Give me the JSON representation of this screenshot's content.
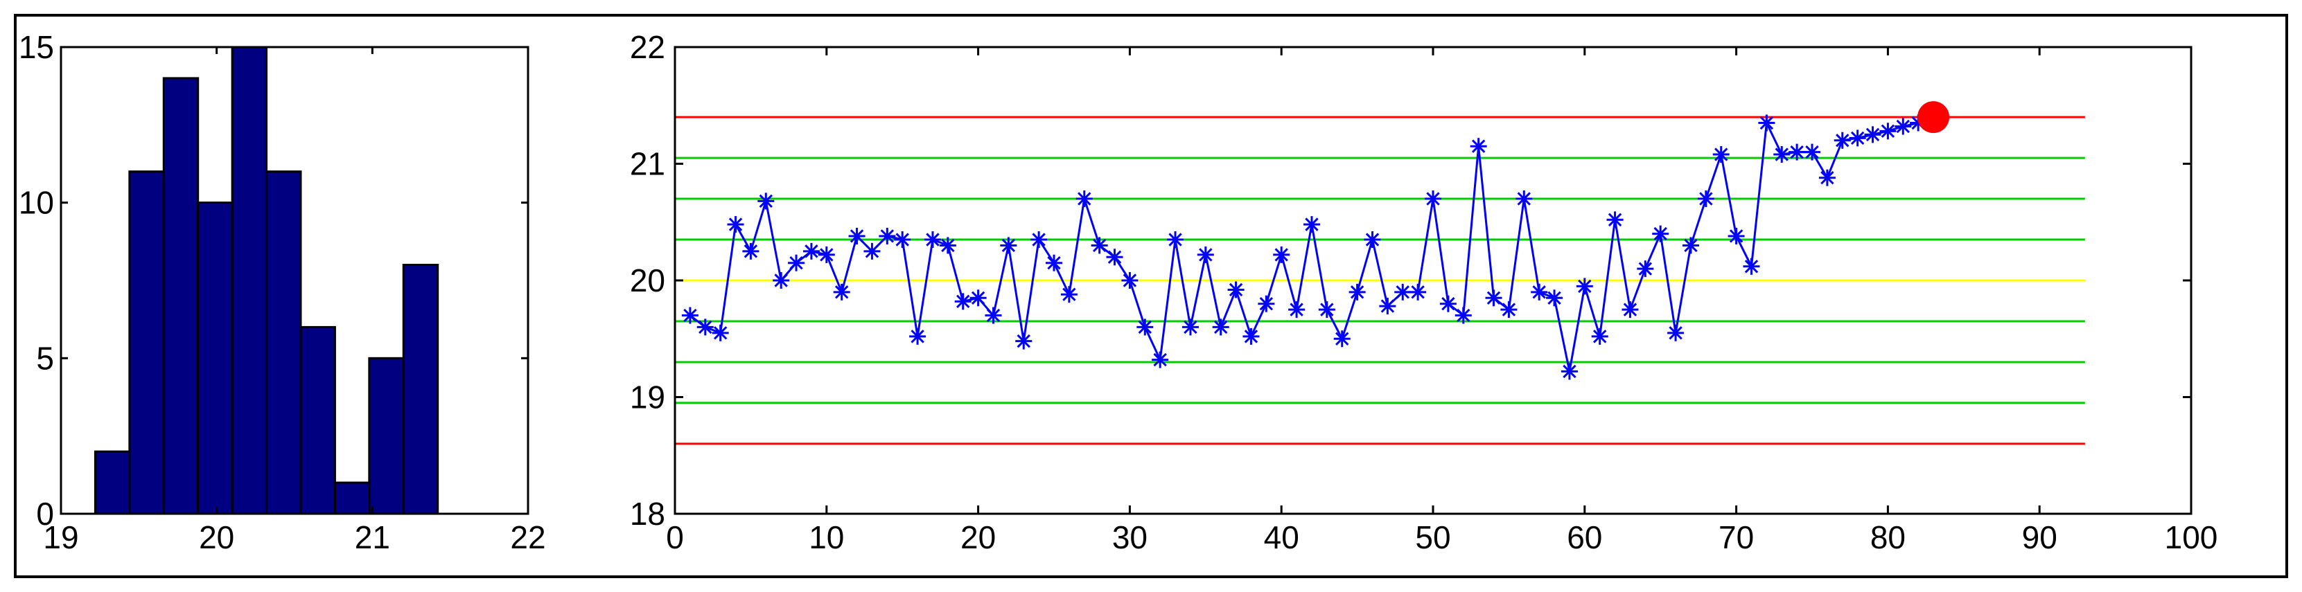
{
  "chart_data": [
    {
      "type": "bar",
      "subtype": "histogram",
      "bar_color": "#000080",
      "bin_width": 0.22,
      "bin_centers": [
        19.33,
        19.55,
        19.77,
        19.99,
        20.21,
        20.43,
        20.65,
        20.87,
        21.09,
        21.31
      ],
      "values": [
        2,
        11,
        14,
        10,
        15,
        11,
        6,
        1,
        5,
        8
      ],
      "xlim": [
        19,
        22
      ],
      "ylim": [
        0,
        15
      ],
      "xticks": [
        19,
        20,
        21,
        22
      ],
      "yticks": [
        0,
        5,
        10,
        15
      ],
      "grid": false
    },
    {
      "type": "line",
      "subtype": "control-chart",
      "xlim": [
        0,
        100
      ],
      "ylim": [
        18,
        22
      ],
      "xticks": [
        0,
        10,
        20,
        30,
        40,
        50,
        60,
        70,
        80,
        90,
        100
      ],
      "yticks": [
        18,
        19,
        20,
        21,
        22
      ],
      "grid": false,
      "series": [
        {
          "color": "#0000ff",
          "marker": "asterisk",
          "x": [
            1,
            2,
            3,
            4,
            5,
            6,
            7,
            8,
            9,
            10,
            11,
            12,
            13,
            14,
            15,
            16,
            17,
            18,
            19,
            20,
            21,
            22,
            23,
            24,
            25,
            26,
            27,
            28,
            29,
            30,
            31,
            32,
            33,
            34,
            35,
            36,
            37,
            38,
            39,
            40,
            41,
            42,
            43,
            44,
            45,
            46,
            47,
            48,
            49,
            50,
            51,
            52,
            53,
            54,
            55,
            56,
            57,
            58,
            59,
            60,
            61,
            62,
            63,
            64,
            65,
            66,
            67,
            68,
            69,
            70,
            71,
            72,
            73,
            74,
            75,
            76,
            77,
            78,
            79,
            80,
            81,
            82,
            83
          ],
          "y": [
            19.7,
            19.6,
            19.55,
            20.48,
            20.25,
            20.68,
            20.0,
            20.15,
            20.25,
            20.22,
            19.9,
            20.38,
            20.25,
            20.38,
            20.35,
            19.52,
            20.35,
            20.3,
            19.82,
            19.85,
            19.7,
            20.3,
            19.48,
            20.35,
            20.15,
            19.88,
            20.7,
            20.3,
            20.2,
            20.0,
            19.6,
            19.32,
            20.35,
            19.6,
            20.22,
            19.6,
            19.92,
            19.52,
            19.8,
            20.22,
            19.75,
            20.48,
            19.75,
            19.5,
            19.9,
            20.35,
            19.78,
            19.9,
            19.9,
            20.7,
            19.8,
            19.7,
            21.15,
            19.85,
            19.75,
            20.7,
            19.9,
            19.85,
            19.22,
            19.95,
            19.52,
            20.52,
            19.75,
            20.1,
            20.4,
            19.55,
            20.3,
            20.7,
            21.08,
            20.38,
            20.12,
            21.35,
            21.08,
            21.1,
            21.1,
            20.88,
            21.2,
            21.22,
            21.25,
            21.28,
            21.32,
            21.35,
            21.4
          ]
        }
      ],
      "highlight_point": {
        "x": 83,
        "y": 21.4,
        "color": "#ff0000"
      },
      "limit_lines": {
        "x_range": [
          0,
          93
        ],
        "red": [
          21.4,
          18.6
        ],
        "green": [
          21.05,
          20.7,
          20.35,
          19.65,
          19.3,
          18.95
        ],
        "yellow": [
          20.0
        ],
        "colors": {
          "red": "#ff0000",
          "green": "#00cc00",
          "yellow": "#ffff00"
        }
      }
    }
  ]
}
